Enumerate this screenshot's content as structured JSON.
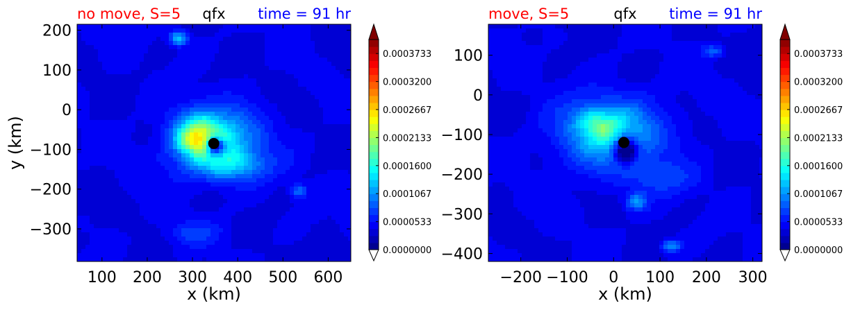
{
  "chart_data": [
    {
      "type": "heatmap",
      "title_left": "no move, S=5",
      "title_center": "qfx",
      "title_right": "time = 91 hr",
      "xlabel": "x (km)",
      "ylabel": "y (km)",
      "xlim": [
        45,
        650
      ],
      "ylim": [
        -382,
        215
      ],
      "xticks": [
        100,
        200,
        300,
        400,
        500,
        600
      ],
      "yticks": [
        200,
        100,
        0,
        -100,
        -200,
        -300
      ],
      "xticklabels": [
        "100",
        "200",
        "300",
        "400",
        "500",
        "600"
      ],
      "yticklabels": [
        "200",
        "100",
        "0",
        "−100",
        "−200",
        "−300"
      ],
      "marker": {
        "x": 347,
        "y": -85
      },
      "blobs": [
        {
          "x": 350,
          "y": -80,
          "sx": 65,
          "sy": 55,
          "v": 0.00012
        },
        {
          "x": 315,
          "y": -60,
          "sx": 30,
          "sy": 30,
          "v": 0.0001
        },
        {
          "x": 300,
          "y": -85,
          "sx": 25,
          "sy": 20,
          "v": 5e-05
        },
        {
          "x": 390,
          "y": -140,
          "sx": 60,
          "sy": 25,
          "v": 5e-05
        },
        {
          "x": 270,
          "y": 180,
          "sx": 14,
          "sy": 12,
          "v": 9e-05
        },
        {
          "x": 535,
          "y": -205,
          "sx": 12,
          "sy": 12,
          "v": 6e-05
        },
        {
          "x": 300,
          "y": -310,
          "sx": 40,
          "sy": 20,
          "v": 3e-05
        }
      ],
      "holes": [
        {
          "x": 350,
          "y": -90,
          "sx": 14,
          "sy": 16,
          "v": 0.00017
        }
      ]
    },
    {
      "type": "heatmap",
      "title_left": "move, S=5",
      "title_center": "qfx",
      "title_right": "time = 91 hr",
      "xlabel": "x (km)",
      "ylabel": "",
      "xlim": [
        -270,
        320
      ],
      "ylim": [
        -420,
        178
      ],
      "xticks": [
        -200,
        -100,
        0,
        100,
        200,
        300
      ],
      "yticks": [
        100,
        0,
        -100,
        -200,
        -300,
        -400
      ],
      "xticklabels": [
        "−200",
        "−100",
        "0",
        "100",
        "200",
        "300"
      ],
      "yticklabels": [
        "100",
        "0",
        "−100",
        "−200",
        "−300",
        "−400"
      ],
      "marker": {
        "x": 22,
        "y": -120
      },
      "blobs": [
        {
          "x": -5,
          "y": -100,
          "sx": 75,
          "sy": 60,
          "v": 0.0001
        },
        {
          "x": -30,
          "y": -70,
          "sx": 30,
          "sy": 25,
          "v": 7e-05
        },
        {
          "x": 50,
          "y": -270,
          "sx": 15,
          "sy": 15,
          "v": 7e-05
        },
        {
          "x": 125,
          "y": -380,
          "sx": 15,
          "sy": 10,
          "v": 7e-05
        },
        {
          "x": 215,
          "y": 110,
          "sx": 15,
          "sy": 10,
          "v": 5e-05
        },
        {
          "x": 110,
          "y": -210,
          "sx": 50,
          "sy": 30,
          "v": 3e-05
        }
      ],
      "holes": [
        {
          "x": 25,
          "y": -140,
          "sx": 18,
          "sy": 22,
          "v": 0.00014
        }
      ]
    }
  ],
  "colorbar": {
    "ticks": [
      "0.0003733",
      "0.0003200",
      "0.0002667",
      "0.0002133",
      "0.0001600",
      "0.0001067",
      "0.0000533",
      "0.0000000"
    ],
    "vmax": 0.0004,
    "levels": 30
  }
}
